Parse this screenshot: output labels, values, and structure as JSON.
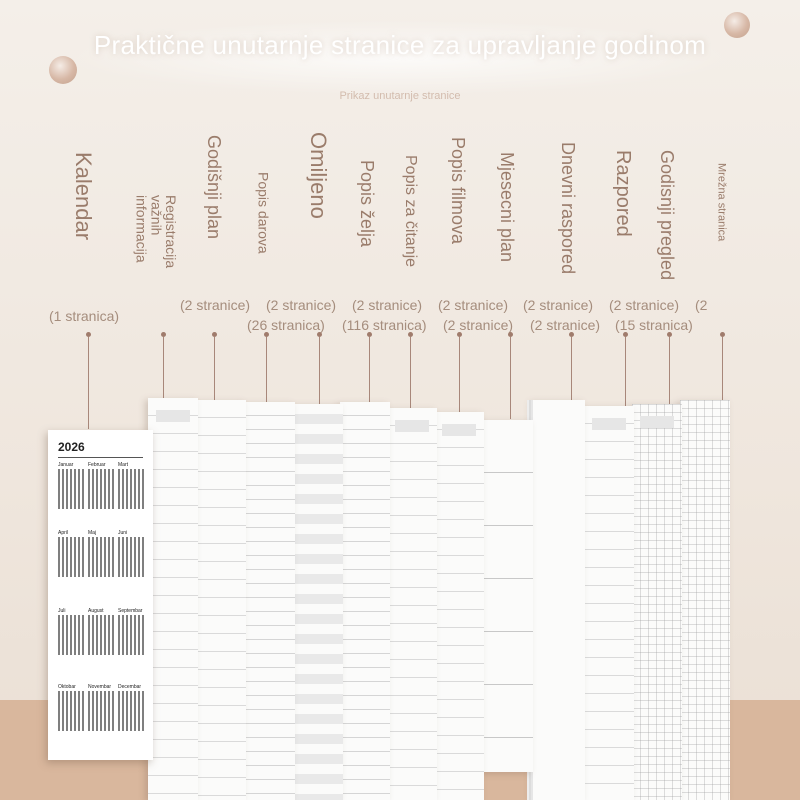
{
  "title": "Praktične unutarnje stranice za upravljanje godinom",
  "subtitle": "Prikaz unutarnje stranice",
  "pages": [
    {
      "label": "Kalendar",
      "count": "(1 stranica)"
    },
    {
      "label": "Registracija važnih informacija",
      "count": ""
    },
    {
      "label": "Godišnji plan",
      "count": "(2 stranice)"
    },
    {
      "label": "Popis darova",
      "count": "(2 stranice)"
    },
    {
      "label": "Omiljeno",
      "count": "(26 stranica)"
    },
    {
      "label": "Popis želja",
      "count": "(2 stranice)"
    },
    {
      "label": "Popis za čitanje",
      "count": "(116 stranica)"
    },
    {
      "label": "Popis filmova",
      "count": "(2 stranice)"
    },
    {
      "label": "Mjesecni plan",
      "count": "(2 stranice)"
    },
    {
      "label": "Dnevni raspored",
      "count": "(2 stranice)"
    },
    {
      "label": "Razpored",
      "count": "(2 stranice)"
    },
    {
      "label": "Godisnji pregled",
      "count": "(15 stranica)"
    },
    {
      "label": "Mrežna stranica",
      "count": "(2"
    }
  ],
  "calendar": {
    "year": "2026",
    "months": [
      "Januar",
      "Februar",
      "Mart",
      "April",
      "Maj",
      "Juni",
      "Juli",
      "August",
      "Septembar",
      "Oktobar",
      "Novembar",
      "Decembar"
    ]
  },
  "colors": {
    "background": "#f2ebe4",
    "table": "#d9b79d",
    "label": "#9a7c6b"
  }
}
